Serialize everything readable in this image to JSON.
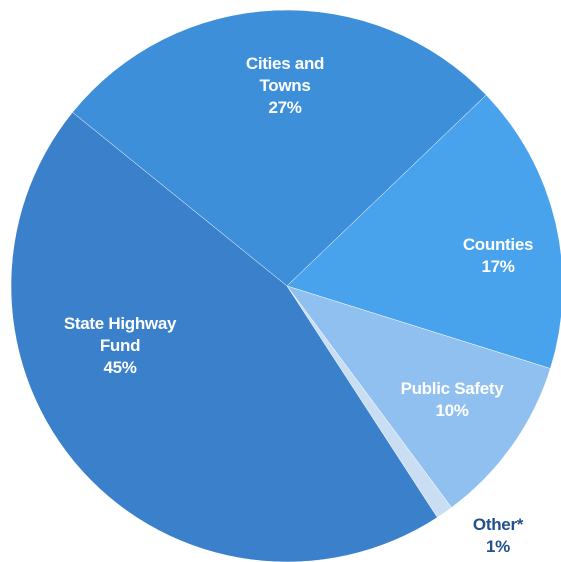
{
  "chart_data": {
    "type": "pie",
    "categories": [
      "Cities and Towns",
      "Counties",
      "Public Safety",
      "Other*",
      "State Highway Fund"
    ],
    "values": [
      27,
      17,
      10,
      1,
      45
    ],
    "value_labels": [
      "27%",
      "17%",
      "10%",
      "1%",
      "45%"
    ],
    "colors": [
      "#3d8fd9",
      "#48a2ec",
      "#8fc0ef",
      "#c9def3",
      "#3a80cb"
    ]
  }
}
